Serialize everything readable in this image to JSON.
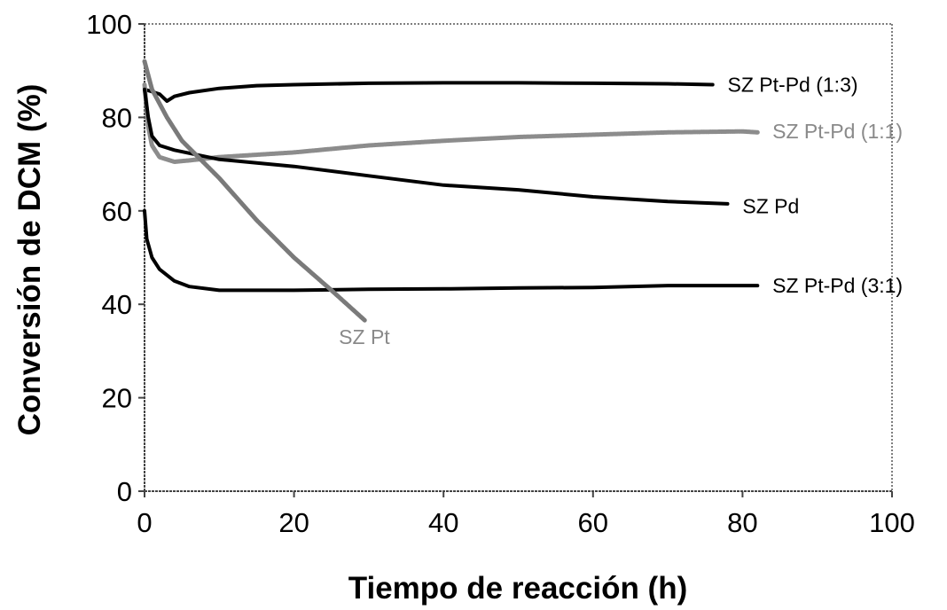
{
  "chart_data": {
    "type": "line",
    "title": "",
    "xlabel": "Tiempo de reacción (h)",
    "ylabel": "Conversión de DCM (%)",
    "xlim": [
      0,
      100
    ],
    "ylim": [
      0,
      100
    ],
    "xticks": [
      0,
      20,
      40,
      60,
      80,
      100
    ],
    "yticks": [
      0,
      20,
      40,
      60,
      80,
      100
    ],
    "grid": false,
    "legend": "none (series labelled inline at line ends)",
    "series": [
      {
        "name": "SZ Pt-Pd (1:3)",
        "color": "#000000",
        "points": [
          [
            0,
            86
          ],
          [
            1,
            85.5
          ],
          [
            2,
            85
          ],
          [
            3,
            83.5
          ],
          [
            4,
            84.5
          ],
          [
            6,
            85.3
          ],
          [
            10,
            86.2
          ],
          [
            15,
            86.8
          ],
          [
            20,
            87
          ],
          [
            30,
            87.3
          ],
          [
            40,
            87.4
          ],
          [
            50,
            87.4
          ],
          [
            60,
            87.3
          ],
          [
            70,
            87.2
          ],
          [
            76,
            87
          ]
        ]
      },
      {
        "name": "SZ Pt-Pd (1:1)",
        "color": "#8c8c8c",
        "points": [
          [
            0,
            87
          ],
          [
            0.5,
            78
          ],
          [
            1,
            74
          ],
          [
            2,
            71.5
          ],
          [
            4,
            70.5
          ],
          [
            6,
            70.8
          ],
          [
            10,
            71.5
          ],
          [
            20,
            72.5
          ],
          [
            30,
            74
          ],
          [
            40,
            75
          ],
          [
            50,
            75.8
          ],
          [
            60,
            76.3
          ],
          [
            70,
            76.8
          ],
          [
            80,
            77
          ],
          [
            82,
            76.8
          ]
        ]
      },
      {
        "name": "SZ Pd",
        "color": "#000000",
        "points": [
          [
            0,
            86
          ],
          [
            0.5,
            80
          ],
          [
            1,
            76
          ],
          [
            2,
            74
          ],
          [
            4,
            73
          ],
          [
            10,
            71
          ],
          [
            20,
            69.5
          ],
          [
            30,
            67.5
          ],
          [
            40,
            65.5
          ],
          [
            50,
            64.5
          ],
          [
            60,
            63
          ],
          [
            70,
            62
          ],
          [
            78,
            61.5
          ]
        ]
      },
      {
        "name": "SZ Pt-Pd (3:1)",
        "color": "#000000",
        "points": [
          [
            0,
            60
          ],
          [
            0.3,
            54
          ],
          [
            1,
            50
          ],
          [
            2,
            47.5
          ],
          [
            4,
            45
          ],
          [
            6,
            43.8
          ],
          [
            10,
            43
          ],
          [
            20,
            43
          ],
          [
            30,
            43.2
          ],
          [
            40,
            43.3
          ],
          [
            50,
            43.5
          ],
          [
            60,
            43.6
          ],
          [
            70,
            44
          ],
          [
            82,
            44
          ]
        ]
      },
      {
        "name": "SZ Pt",
        "color": "#7a7a7a",
        "points": [
          [
            0,
            92
          ],
          [
            1,
            86
          ],
          [
            3,
            80
          ],
          [
            5,
            75
          ],
          [
            10,
            67
          ],
          [
            15,
            58
          ],
          [
            20,
            50
          ],
          [
            25,
            43
          ],
          [
            29.5,
            36.5
          ]
        ]
      }
    ],
    "annotations": [
      {
        "text": "SZ Pt-Pd (1:3)",
        "x": 78,
        "y": 87
      },
      {
        "text": "SZ Pt-Pd (1:1)",
        "x": 84,
        "y": 77
      },
      {
        "text": "SZ Pd",
        "x": 80,
        "y": 61
      },
      {
        "text": "SZ Pt-Pd (3:1)",
        "x": 84,
        "y": 44
      },
      {
        "text": "SZ Pt",
        "x": 26,
        "y": 33
      }
    ]
  }
}
